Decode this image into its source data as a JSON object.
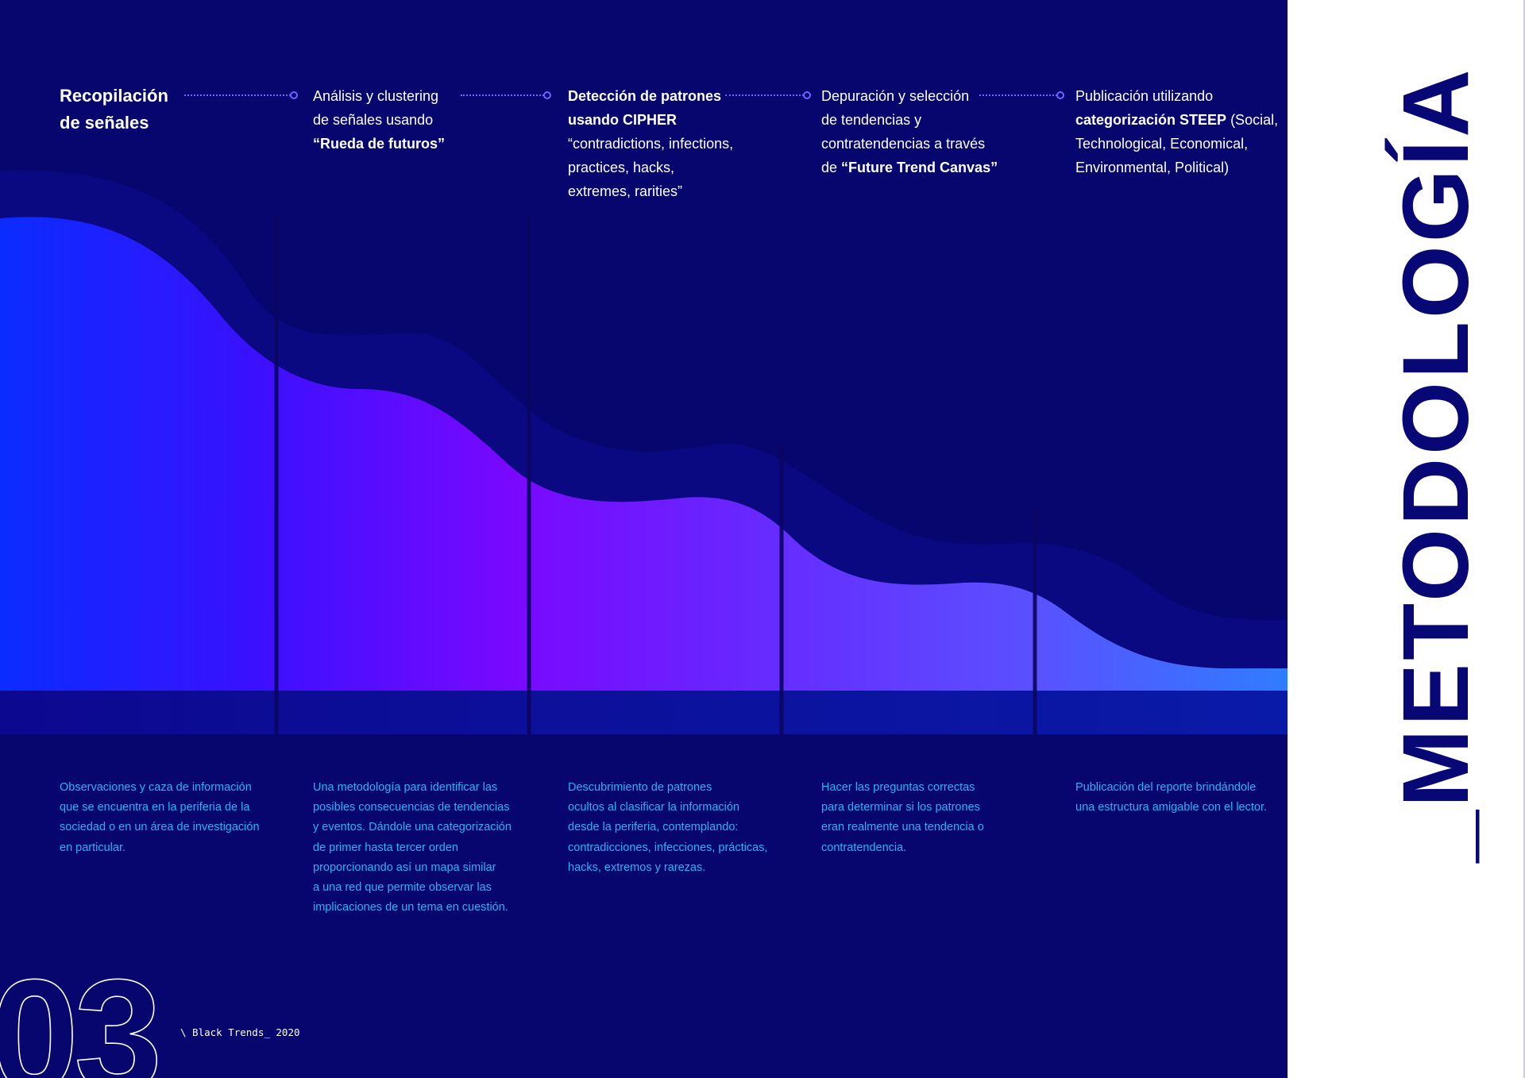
{
  "steps": [
    {
      "lines": [
        {
          "text": "Recopilación",
          "bold": true
        },
        {
          "text": "de señales",
          "bold": true
        }
      ]
    },
    {
      "lines": [
        {
          "parts": [
            {
              "text": "Análisis y clustering"
            }
          ]
        },
        {
          "parts": [
            {
              "text": "de señales usando"
            }
          ]
        },
        {
          "parts": [
            {
              "text": "“Rueda de futuros”",
              "bold": true
            }
          ]
        }
      ]
    },
    {
      "lines": [
        {
          "parts": [
            {
              "text": "Detección de patrones",
              "bold": true
            }
          ]
        },
        {
          "parts": [
            {
              "text": "usando CIPHER",
              "bold": true
            }
          ]
        },
        {
          "parts": [
            {
              "text": "“contradictions, infections,"
            }
          ]
        },
        {
          "parts": [
            {
              "text": "practices, hacks,"
            }
          ]
        },
        {
          "parts": [
            {
              "text": "extremes, rarities”"
            }
          ]
        }
      ]
    },
    {
      "lines": [
        {
          "parts": [
            {
              "text": "Depuración y selección"
            }
          ]
        },
        {
          "parts": [
            {
              "text": "de tendencias y"
            }
          ]
        },
        {
          "parts": [
            {
              "text": "contratendencias a través"
            }
          ]
        },
        {
          "parts": [
            {
              "text": "de "
            },
            {
              "text": "“Future Trend Canvas”",
              "bold": true
            }
          ]
        }
      ]
    },
    {
      "lines": [
        {
          "parts": [
            {
              "text": "Publicación utilizando"
            }
          ]
        },
        {
          "parts": [
            {
              "text": "categorización STEEP",
              "bold": true
            },
            {
              "text": " (Social,"
            }
          ]
        },
        {
          "parts": [
            {
              "text": "Technological, Economical,"
            }
          ]
        },
        {
          "parts": [
            {
              "text": "Environmental, Political)"
            }
          ]
        }
      ]
    }
  ],
  "descriptions": [
    [
      "Observaciones y caza de información",
      "que se encuentra en la periferia de la",
      "sociedad o en un área de investigación",
      "en particular."
    ],
    [
      "Una metodología para identificar las",
      "posibles consecuencias de tendencias",
      "y eventos. Dándole una categorización",
      "de primer hasta tercer orden",
      "proporcionando así un mapa similar",
      "a una red que permite observar las",
      "implicaciones de un tema en cuestión."
    ],
    [
      "Descubrimiento de patrones",
      "ocultos al clasificar la información",
      "desde la periferia, contemplando:",
      "contradicciones, infecciones, prácticas,",
      "hacks, extremos y rarezas."
    ],
    [
      "Hacer las preguntas correctas",
      "para determinar si los patrones",
      "eran realmente una tendencia o",
      "contratendencia."
    ],
    [
      "Publicación del reporte brindándole",
      "una estructura amigable con el lector."
    ]
  ],
  "footer": {
    "page_number": "03",
    "text": "\\ Black Trends_ 2020"
  },
  "title": "_METODOLOGÍA",
  "colors": {
    "background": "#06066e",
    "accent_text": "#29b3f7",
    "title": "#070775",
    "connector": "#6f63ff"
  }
}
